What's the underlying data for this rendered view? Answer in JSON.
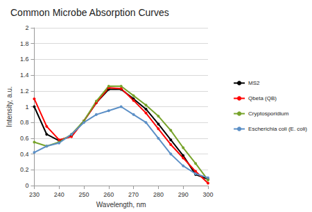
{
  "chart_data": {
    "type": "line",
    "title": "Common Microbe Absorption Curves",
    "x_label": "Wavelength, nm",
    "y_label": "Intensity, a.u.",
    "x": [
      230,
      235,
      240,
      245,
      250,
      255,
      260,
      265,
      270,
      275,
      280,
      285,
      290,
      295,
      300
    ],
    "series": [
      {
        "name": "MS2",
        "color": "#000000",
        "values": [
          1.0,
          0.65,
          0.57,
          0.63,
          0.82,
          1.05,
          1.22,
          1.22,
          1.1,
          0.97,
          0.78,
          0.58,
          0.38,
          0.14,
          0.08
        ]
      },
      {
        "name": "Qbeta (QB)",
        "color": "#ff0000",
        "values": [
          1.1,
          0.75,
          0.58,
          0.62,
          0.82,
          1.05,
          1.24,
          1.23,
          1.08,
          0.92,
          0.72,
          0.52,
          0.35,
          0.18,
          0.03
        ]
      },
      {
        "name": "Cryptosporidium",
        "color": "#77a32b",
        "values": [
          0.55,
          0.5,
          0.55,
          0.65,
          0.82,
          1.07,
          1.26,
          1.26,
          1.14,
          1.02,
          0.88,
          0.7,
          0.48,
          0.28,
          0.07
        ]
      },
      {
        "name": "Escherichia coli (E. coli)",
        "color": "#5b8fc6",
        "values": [
          0.42,
          0.5,
          0.54,
          0.65,
          0.8,
          0.9,
          0.95,
          1.0,
          0.9,
          0.8,
          0.6,
          0.4,
          0.25,
          0.15,
          0.1
        ]
      }
    ],
    "xlim": [
      230,
      300
    ],
    "xticks": [
      230,
      240,
      250,
      260,
      270,
      280,
      290,
      300
    ],
    "ylim": [
      0,
      2
    ],
    "yticks": [
      0,
      0.2,
      0.4,
      0.6,
      0.8,
      1,
      1.2,
      1.4,
      1.6,
      1.8,
      2
    ],
    "grid": true,
    "legend": "right",
    "marker": "circle",
    "line_style": "solid"
  }
}
